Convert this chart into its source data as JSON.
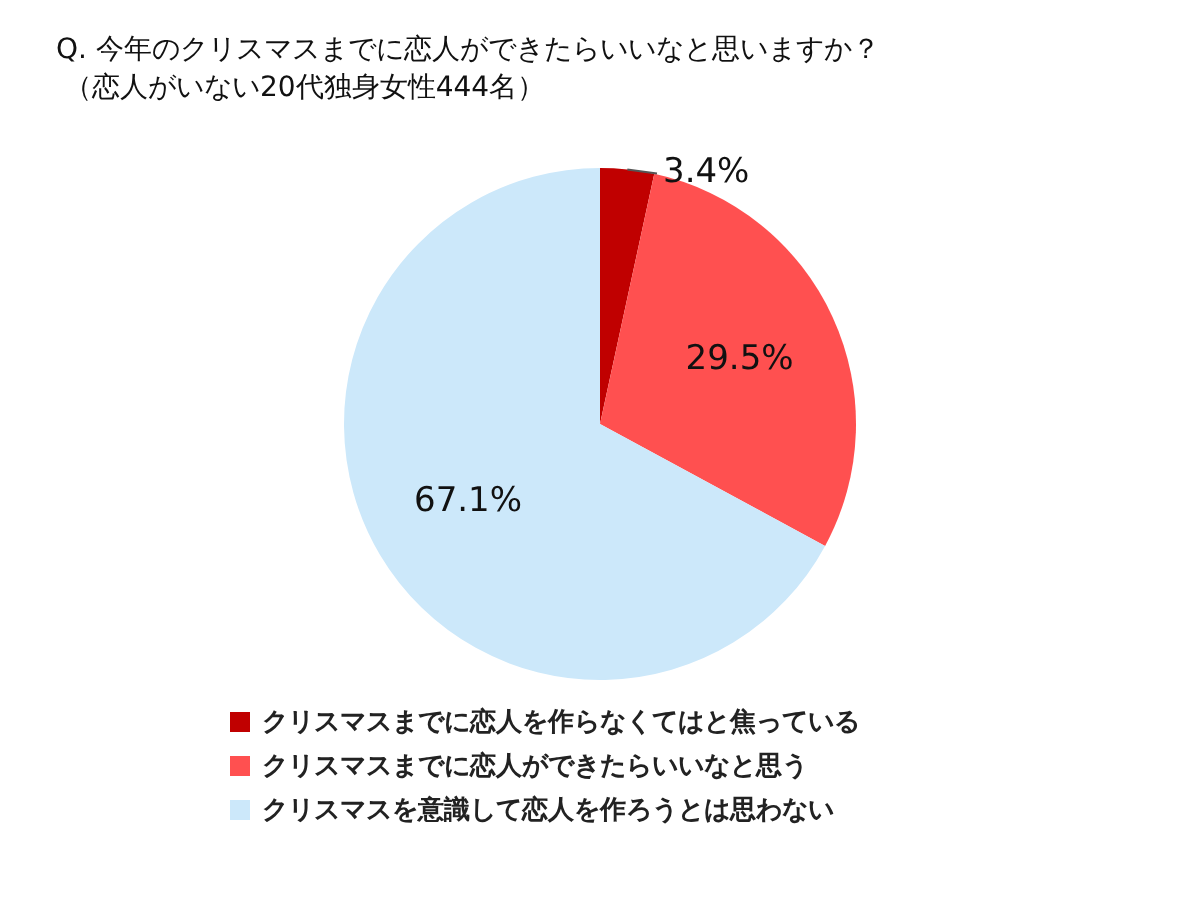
{
  "chart_data": {
    "type": "pie",
    "title": "Q. 今年のクリスマスまでに恋人ができたらいいなと思いますか？",
    "subtitle": "（恋人がいない20代独身女性444名）",
    "categories": [
      "クリスマスまでに恋人を作らなくてはと焦っている",
      "クリスマスまでに恋人ができたらいいなと思う",
      "クリスマスを意識して恋人を作ろうとは思わない"
    ],
    "values": [
      3.4,
      29.5,
      67.1
    ],
    "colors": [
      "#c00000",
      "#ff5050",
      "#cce8fa"
    ],
    "value_labels": [
      "3.4%",
      "29.5%",
      "67.1%"
    ],
    "legend": "bottom"
  }
}
